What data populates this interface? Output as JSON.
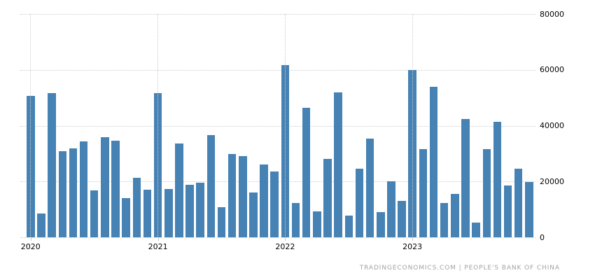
{
  "chart_data": {
    "type": "bar",
    "title": "",
    "xlabel": "",
    "ylabel": "",
    "ylim": [
      0,
      80000
    ],
    "y_tick_labels": [
      "0",
      "20000",
      "40000",
      "60000",
      "80000"
    ],
    "x_tick_labels": [
      "2020",
      "2021",
      "2022",
      "2023"
    ],
    "grid": true,
    "legend": false,
    "bar_color": "#4682b4",
    "gridline_color": "#cccccc",
    "x": [
      "2020-01",
      "2020-02",
      "2020-03",
      "2020-04",
      "2020-05",
      "2020-06",
      "2020-07",
      "2020-08",
      "2020-09",
      "2020-10",
      "2020-11",
      "2020-12",
      "2021-01",
      "2021-02",
      "2021-03",
      "2021-04",
      "2021-05",
      "2021-06",
      "2021-07",
      "2021-08",
      "2021-09",
      "2021-10",
      "2021-11",
      "2021-12",
      "2022-01",
      "2022-02",
      "2022-03",
      "2022-04",
      "2022-05",
      "2022-06",
      "2022-07",
      "2022-08",
      "2022-09",
      "2022-10",
      "2022-11",
      "2022-12",
      "2023-01",
      "2023-02",
      "2023-03",
      "2023-04",
      "2023-05",
      "2023-06",
      "2023-07",
      "2023-08",
      "2023-09",
      "2023-10",
      "2023-11",
      "2023-12"
    ],
    "values": [
      50700,
      8600,
      51700,
      30900,
      31900,
      34400,
      16900,
      35800,
      34700,
      14000,
      21400,
      17100,
      51700,
      17200,
      33500,
      18700,
      19500,
      36600,
      10700,
      29800,
      29000,
      16000,
      26000,
      23700,
      61800,
      12200,
      46500,
      9300,
      28200,
      51900,
      7700,
      24600,
      35400,
      9100,
      20000,
      13100,
      59900,
      31600,
      53900,
      12400,
      15600,
      42400,
      5300,
      31500,
      41400,
      18600,
      24600,
      19800
    ]
  },
  "footer": {
    "text": "TRADINGECONOMICS.COM | PEOPLE'S BANK OF CHINA"
  }
}
